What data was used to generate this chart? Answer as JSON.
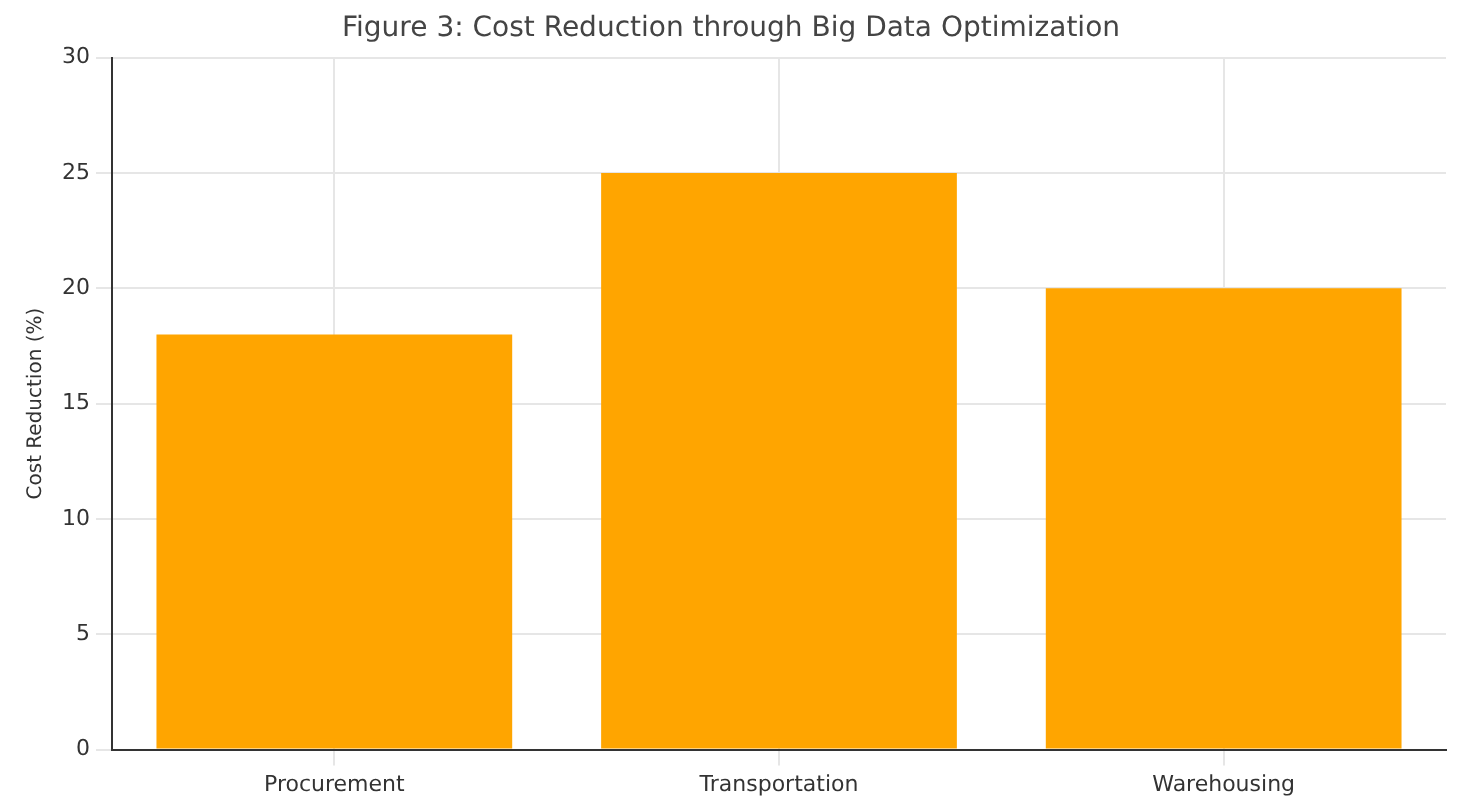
{
  "chart_data": {
    "type": "bar",
    "title": "Figure 3: Cost Reduction through Big Data Optimization",
    "ylabel": "Cost Reduction (%)",
    "categories": [
      "Procurement",
      "Transportation",
      "Warehousing"
    ],
    "values": [
      18,
      25,
      20
    ],
    "color": "#ffa500",
    "ylim": [
      0,
      30
    ],
    "yticks": [
      0,
      5,
      10,
      15,
      20,
      25,
      30
    ],
    "grid": true
  }
}
